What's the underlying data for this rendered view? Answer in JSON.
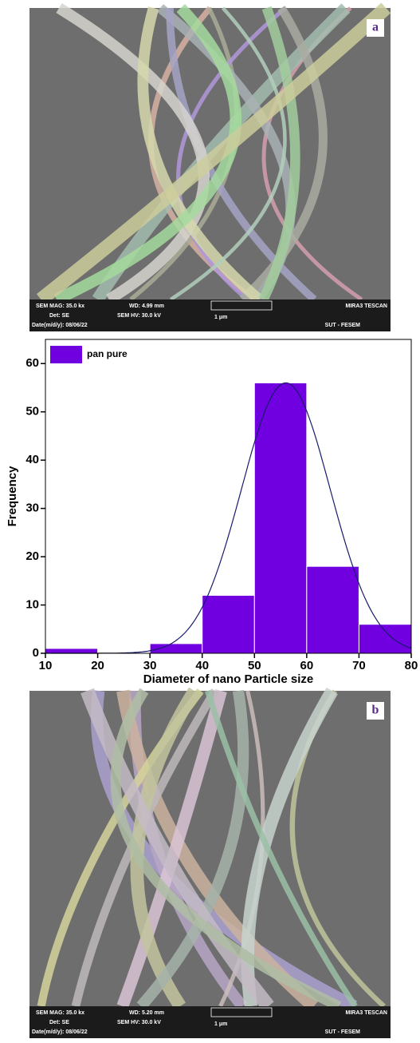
{
  "image_a": {
    "label": "a",
    "mag": "SEM MAG: 35.0 kx",
    "wd": "WD: 4.99 mm",
    "det": "Det: SE",
    "hv": "SEM HV: 30.0 kV",
    "date": "Date(m/d/y): 08/06/22",
    "scale": "1 μm",
    "brand": "MIRA3 TESCAN",
    "lab": "SUT - FESEM"
  },
  "chart_data": {
    "type": "histogram",
    "bins": [
      10,
      20,
      30,
      40,
      50,
      60,
      70,
      80
    ],
    "values": [
      1,
      0,
      2,
      12,
      56,
      18,
      6
    ],
    "color": "#7000e0",
    "series_name": "pan pure",
    "x_label": "Diameter of nano Particle size",
    "y_label": "Frequency",
    "xlim": [
      10,
      80
    ],
    "xticks": [
      10,
      20,
      30,
      40,
      50,
      60,
      70,
      80
    ],
    "ylim": [
      0,
      65
    ],
    "yticks": [
      0,
      10,
      20,
      30,
      40,
      50,
      60
    ],
    "fit": {
      "mean": 56,
      "sd": 8.5,
      "peak": 56,
      "color": "#1a1a6e"
    },
    "legend": "upper left"
  },
  "image_b": {
    "label": "b",
    "mag": "SEM MAG: 35.0 kx",
    "wd": "WD: 5.20 mm",
    "det": "Det: SE",
    "hv": "SEM HV: 30.0 kV",
    "date": "Date(m/d/y): 08/06/22",
    "scale": "1 μm",
    "brand": "MIRA3 TESCAN",
    "lab": "SUT - FESEM"
  }
}
